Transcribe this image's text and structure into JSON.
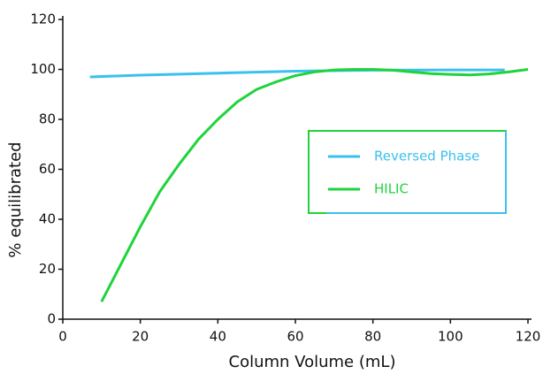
{
  "chart_data": {
    "type": "line",
    "xlabel": "Column Volume (mL)",
    "ylabel": "% equilibrated",
    "xlim": [
      0,
      120
    ],
    "xticks": [
      0,
      20,
      40,
      60,
      80,
      100,
      120
    ],
    "ylim": [
      0,
      120
    ],
    "yticks": [
      0,
      20,
      40,
      60,
      80,
      100,
      120
    ],
    "grid": false,
    "legend": "right",
    "series": [
      {
        "name": "Reversed Phase",
        "color": "#3cc0ee",
        "x": [
          7,
          20,
          40,
          60,
          80,
          100,
          114
        ],
        "values": [
          97,
          97.7,
          98.5,
          99.3,
          99.7,
          99.8,
          99.8
        ]
      },
      {
        "name": "HILIC",
        "color": "#1ed43a",
        "x": [
          10,
          15,
          20,
          25,
          30,
          35,
          40,
          45,
          50,
          55,
          60,
          65,
          70,
          75,
          80,
          85,
          90,
          95,
          100,
          105,
          110,
          115,
          120
        ],
        "values": [
          7,
          22,
          37,
          51,
          62,
          72,
          80,
          87,
          92,
          95,
          97.5,
          99,
          99.8,
          100,
          100,
          99.7,
          99,
          98.3,
          98,
          97.8,
          98.2,
          99,
          100
        ]
      }
    ]
  }
}
